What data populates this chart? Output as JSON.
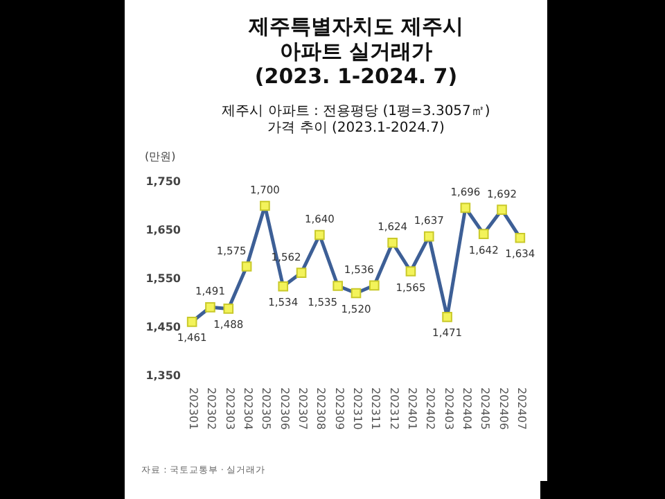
{
  "chart_data": {
    "type": "line",
    "title": "제주특별자치도 제주시\n아파트 실거래가\n(2023. 1-2024. 7)",
    "subtitle": "제주시 아파트 : 전용평당 (1평=3.3057㎡)\n가격 추이 (2023.1-2024.7)",
    "ylabel": "(만원)",
    "categories": [
      "202301",
      "202302",
      "202303",
      "202304",
      "202305",
      "202306",
      "202307",
      "202308",
      "202309",
      "202310",
      "202311",
      "202312",
      "202401",
      "202402",
      "202403",
      "202404",
      "202405",
      "202406",
      "202407"
    ],
    "series": [
      {
        "color": "#3d5f96",
        "values": [
          1461,
          1491,
          1488,
          1575,
          1700,
          1534,
          1562,
          1640,
          1535,
          1520,
          1536,
          1624,
          1565,
          1637,
          1471,
          1696,
          1642,
          1692,
          1634
        ],
        "value_labels": [
          "1,461",
          "1,491",
          "1,488",
          "1,575",
          "1,700",
          "1,534",
          "1,562",
          "1,640",
          "1,535",
          "1,520",
          "1,536",
          "1,624",
          "1,565",
          "1,637",
          "1,471",
          "1,696",
          "1,642",
          "1,692",
          "1,634"
        ]
      }
    ],
    "ylim": [
      1350,
      1750
    ],
    "yticks": [
      {
        "value": 1350,
        "label": "1,350"
      },
      {
        "value": 1450,
        "label": "1,450"
      },
      {
        "value": 1550,
        "label": "1,550"
      },
      {
        "value": 1650,
        "label": "1,650"
      },
      {
        "value": 1750,
        "label": "1,750"
      }
    ],
    "marker": "square",
    "grid": false,
    "annotations": [
      "자료 : 국토교통부 · 실거래가"
    ]
  }
}
